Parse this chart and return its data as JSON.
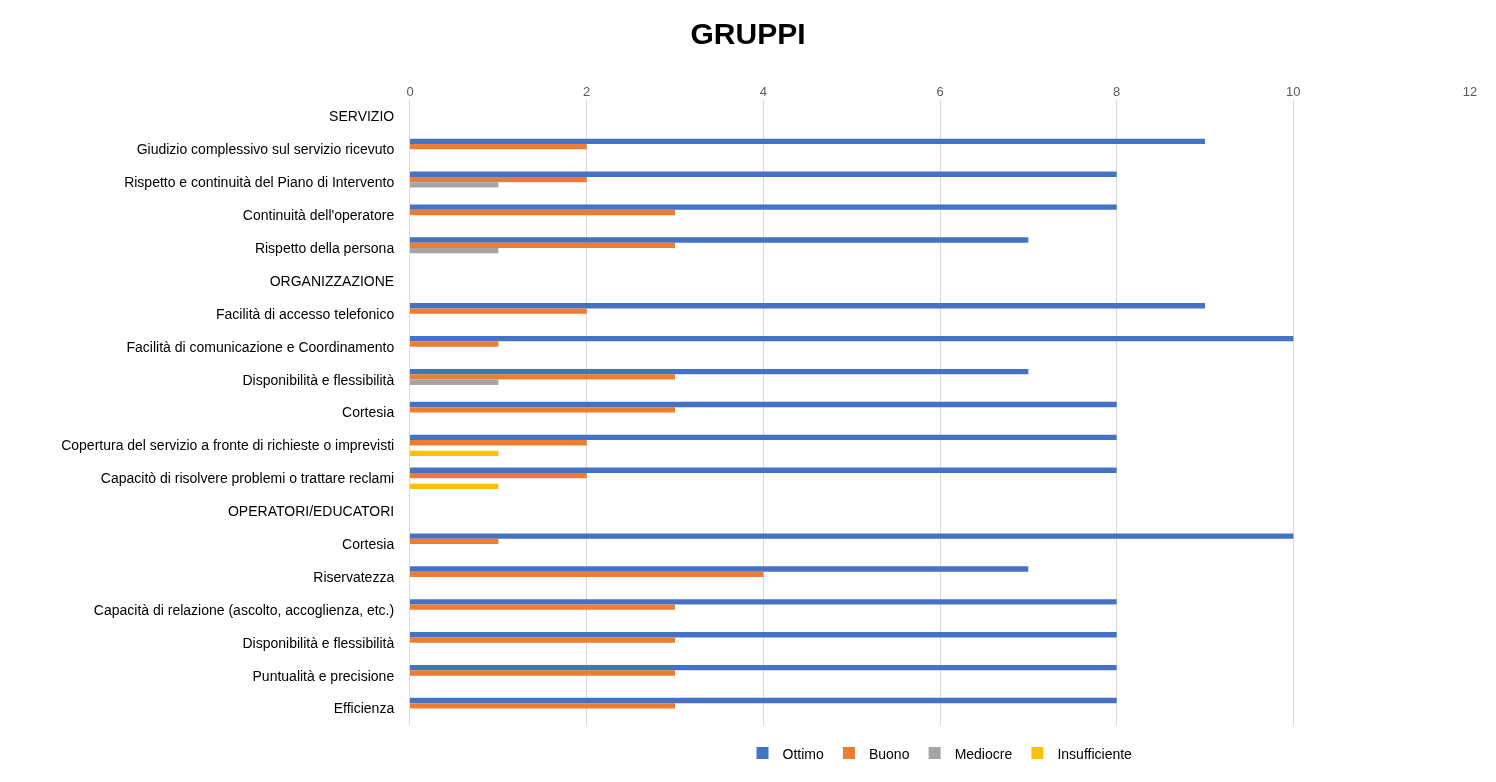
{
  "chart_data": {
    "type": "bar",
    "orientation": "horizontal",
    "title": "GRUPPI",
    "categories": [
      "SERVIZIO",
      "Giudizio complessivo sul servizio ricevuto",
      "Rispetto e continuità del Piano di Intervento",
      "Continuità dell'operatore",
      "Rispetto della persona",
      "ORGANIZZAZIONE",
      "Facilità di accesso telefonico",
      "Facilità di comunicazione e Coordinamento",
      "Disponibilità e flessibilità",
      "Cortesia",
      "Copertura del servizio a fronte di richieste o imprevisti",
      "Capacitò di risolvere problemi o trattare reclami",
      "OPERATORI/EDUCATORI",
      "Cortesia",
      "Riservatezza",
      "Capacità di relazione (ascolto, accoglienza, etc.)",
      "Disponibilità e flessibilità",
      "Puntualità e precisione",
      "Efficienza"
    ],
    "series": [
      {
        "name": "Ottimo",
        "color": "#4472c4",
        "values": [
          null,
          9,
          8,
          8,
          7,
          null,
          9,
          10,
          7,
          8,
          8,
          8,
          null,
          10,
          7,
          8,
          8,
          8,
          8
        ]
      },
      {
        "name": "Buono",
        "color": "#ed7d31",
        "values": [
          null,
          2,
          2,
          3,
          3,
          null,
          2,
          1,
          3,
          3,
          2,
          2,
          null,
          1,
          4,
          3,
          3,
          3,
          3
        ]
      },
      {
        "name": "Mediocre",
        "color": "#a5a5a5",
        "values": [
          null,
          null,
          1,
          null,
          1,
          null,
          null,
          null,
          1,
          null,
          null,
          null,
          null,
          null,
          null,
          null,
          null,
          null,
          null
        ]
      },
      {
        "name": "Insufficiente",
        "color": "#ffc000",
        "values": [
          null,
          null,
          null,
          null,
          null,
          null,
          null,
          null,
          null,
          null,
          1,
          1,
          null,
          null,
          null,
          null,
          null,
          null,
          null
        ]
      }
    ],
    "xlim": [
      0,
      12
    ],
    "xticks": [
      0,
      2,
      4,
      6,
      8,
      10,
      12
    ],
    "grid": "x",
    "legend": "bottom"
  }
}
